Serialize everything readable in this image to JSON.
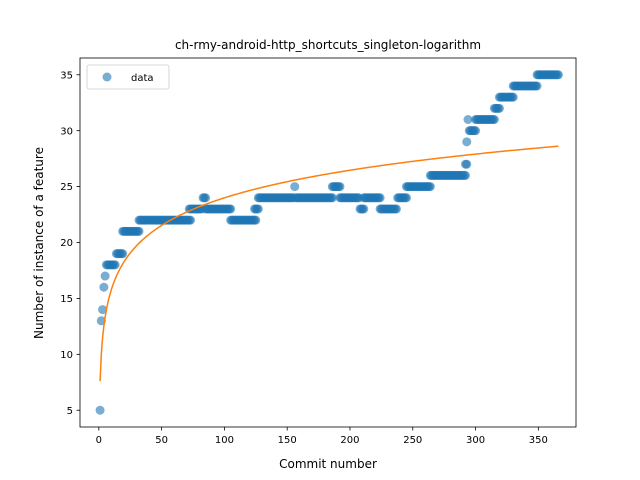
{
  "chart_data": {
    "type": "scatter",
    "title": "ch-rmy-android-http_shortcuts_singleton-logarithm",
    "xlabel": "Commit number",
    "ylabel": "Number of instance of a feature",
    "xlim": [
      -15,
      380
    ],
    "ylim": [
      3.5,
      36.5
    ],
    "xticks": [
      0,
      50,
      100,
      150,
      200,
      250,
      300,
      350
    ],
    "yticks": [
      5,
      10,
      15,
      20,
      25,
      30,
      35
    ],
    "grid": false,
    "legend": {
      "position": "top-left",
      "entries": [
        "data"
      ]
    },
    "colors": {
      "points": "#1f77b4",
      "fit": "#ff7f0e"
    },
    "series": [
      {
        "name": "data",
        "kind": "scatter",
        "segments": [
          {
            "x_start": 1,
            "x_end": 1,
            "y": 5
          },
          {
            "x_start": 2,
            "x_end": 2,
            "y": 13
          },
          {
            "x_start": 3,
            "x_end": 3,
            "y": 14
          },
          {
            "x_start": 4,
            "x_end": 4,
            "y": 16
          },
          {
            "x_start": 5,
            "x_end": 5,
            "y": 17
          },
          {
            "x_start": 6,
            "x_end": 13,
            "y": 18
          },
          {
            "x_start": 14,
            "x_end": 19,
            "y": 19
          },
          {
            "x_start": 19,
            "x_end": 32,
            "y": 21
          },
          {
            "x_start": 32,
            "x_end": 73,
            "y": 22
          },
          {
            "x_start": 72,
            "x_end": 82,
            "y": 23
          },
          {
            "x_start": 83,
            "x_end": 85,
            "y": 24
          },
          {
            "x_start": 85,
            "x_end": 105,
            "y": 23
          },
          {
            "x_start": 105,
            "x_end": 125,
            "y": 22
          },
          {
            "x_start": 124,
            "x_end": 127,
            "y": 23
          },
          {
            "x_start": 127,
            "x_end": 155,
            "y": 24
          },
          {
            "x_start": 156,
            "x_end": 156,
            "y": 25
          },
          {
            "x_start": 157,
            "x_end": 186,
            "y": 24
          },
          {
            "x_start": 186,
            "x_end": 192,
            "y": 25
          },
          {
            "x_start": 192,
            "x_end": 207,
            "y": 24
          },
          {
            "x_start": 208,
            "x_end": 211,
            "y": 23
          },
          {
            "x_start": 211,
            "x_end": 224,
            "y": 24
          },
          {
            "x_start": 224,
            "x_end": 237,
            "y": 23
          },
          {
            "x_start": 238,
            "x_end": 245,
            "y": 24
          },
          {
            "x_start": 245,
            "x_end": 264,
            "y": 25
          },
          {
            "x_start": 264,
            "x_end": 292,
            "y": 26
          },
          {
            "x_start": 292,
            "x_end": 293,
            "y": 27
          },
          {
            "x_start": 293,
            "x_end": 293,
            "y": 29
          },
          {
            "x_start": 294,
            "x_end": 294,
            "y": 31
          },
          {
            "x_start": 295,
            "x_end": 300,
            "y": 30
          },
          {
            "x_start": 300,
            "x_end": 315,
            "y": 31
          },
          {
            "x_start": 315,
            "x_end": 319,
            "y": 32
          },
          {
            "x_start": 319,
            "x_end": 330,
            "y": 33
          },
          {
            "x_start": 330,
            "x_end": 349,
            "y": 34
          },
          {
            "x_start": 349,
            "x_end": 366,
            "y": 35
          }
        ]
      },
      {
        "name": "",
        "kind": "line",
        "model": "y = a + b*ln(x)",
        "a": 7.6,
        "b": 3.56,
        "x_range": [
          1,
          366
        ]
      }
    ]
  }
}
